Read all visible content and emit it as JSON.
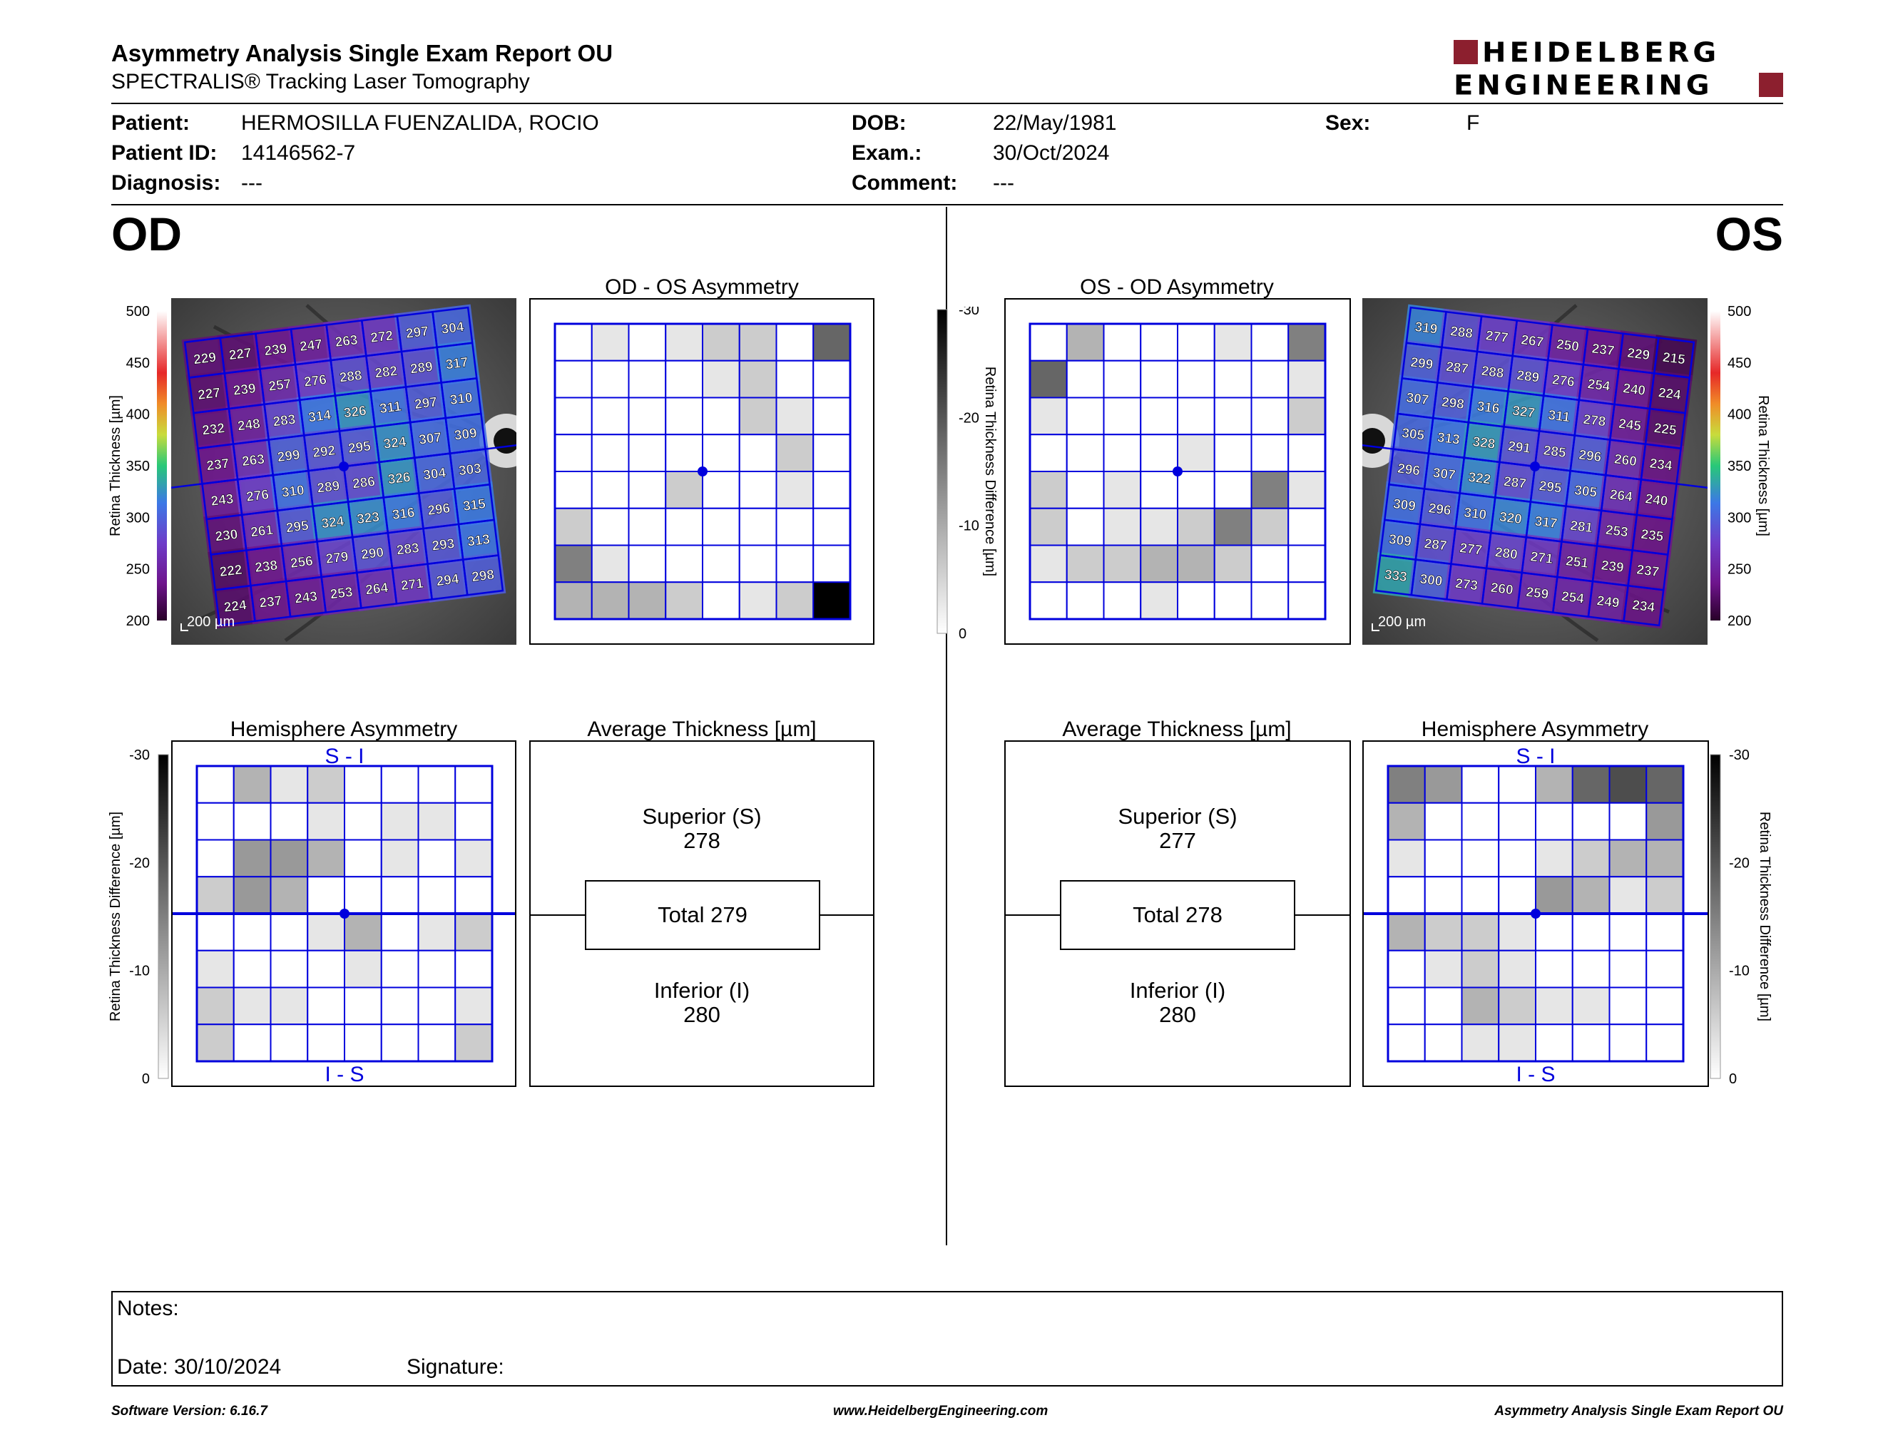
{
  "header": {
    "title": "Asymmetry Analysis Single Exam Report OU",
    "subtitle": "SPECTRALIS® Tracking Laser Tomography",
    "logo_line1": "HEIDELBERG",
    "logo_line2": "ENGINEERING"
  },
  "patient": {
    "patient_label": "Patient:",
    "patient_value": "HERMOSILLA FUENZALIDA, ROCIO",
    "id_label": "Patient ID:",
    "id_value": "14146562-7",
    "diagnosis_label": "Diagnosis:",
    "diagnosis_value": "---",
    "dob_label": "DOB:",
    "dob_value": "22/May/1981",
    "exam_label": "Exam.:",
    "exam_value": "30/Oct/2024",
    "comment_label": "Comment:",
    "comment_value": "---",
    "sex_label": "Sex:",
    "sex_value": "F"
  },
  "od": {
    "eye_label": "OD",
    "asymmetry_title": "OD - OS Asymmetry",
    "hemisphere_title": "Hemisphere Asymmetry",
    "average_title": "Average Thickness [µm]",
    "scale_bar": "200 µm",
    "superior_label": "Superior (S)",
    "superior_value": "278",
    "total_label": "Total 279",
    "inferior_label": "Inferior (I)",
    "inferior_value": "280",
    "si_label": "S - I",
    "is_label": "I - S",
    "thickness": [
      [
        229,
        227,
        239,
        247,
        263,
        272,
        297,
        304
      ],
      [
        227,
        239,
        257,
        276,
        288,
        282,
        289,
        317
      ],
      [
        232,
        248,
        283,
        314,
        326,
        311,
        297,
        310
      ],
      [
        237,
        263,
        299,
        292,
        295,
        324,
        307,
        309
      ],
      [
        243,
        276,
        310,
        289,
        286,
        326,
        304,
        303
      ],
      [
        230,
        261,
        295,
        324,
        323,
        316,
        296,
        315
      ],
      [
        222,
        238,
        256,
        279,
        290,
        283,
        293,
        313
      ],
      [
        224,
        237,
        243,
        253,
        264,
        271,
        294,
        298
      ]
    ],
    "asym_grid": [
      [
        0,
        1,
        0,
        1,
        2,
        2,
        0,
        6
      ],
      [
        0,
        0,
        0,
        0,
        1,
        2,
        0,
        0
      ],
      [
        0,
        0,
        0,
        0,
        0,
        2,
        1,
        0
      ],
      [
        0,
        0,
        0,
        0,
        0,
        0,
        2,
        0
      ],
      [
        0,
        0,
        0,
        2,
        0,
        0,
        1,
        0
      ],
      [
        2,
        0,
        0,
        0,
        0,
        0,
        0,
        0
      ],
      [
        5,
        1,
        0,
        0,
        0,
        0,
        0,
        0
      ],
      [
        3,
        3,
        3,
        2,
        0,
        1,
        2,
        10
      ]
    ],
    "hemi_grid": [
      [
        0,
        3,
        1,
        2,
        0,
        0,
        0,
        0
      ],
      [
        0,
        0,
        0,
        1,
        0,
        1,
        1,
        0
      ],
      [
        0,
        4,
        4,
        3,
        0,
        1,
        0,
        1
      ],
      [
        2,
        4,
        3,
        0,
        0,
        0,
        0,
        0
      ],
      [
        0,
        0,
        0,
        1,
        3,
        0,
        1,
        2
      ],
      [
        1,
        0,
        0,
        0,
        1,
        0,
        0,
        0
      ],
      [
        2,
        1,
        1,
        0,
        0,
        0,
        0,
        1
      ],
      [
        2,
        0,
        0,
        0,
        0,
        0,
        0,
        2
      ]
    ]
  },
  "os": {
    "eye_label": "OS",
    "asymmetry_title": "OS - OD Asymmetry",
    "hemisphere_title": "Hemisphere Asymmetry",
    "average_title": "Average Thickness [µm]",
    "scale_bar": "200 µm",
    "superior_label": "Superior (S)",
    "superior_value": "277",
    "total_label": "Total 278",
    "inferior_label": "Inferior (I)",
    "inferior_value": "280",
    "si_label": "S - I",
    "is_label": "I - S",
    "thickness": [
      [
        319,
        288,
        277,
        267,
        250,
        237,
        229,
        215
      ],
      [
        299,
        287,
        288,
        289,
        276,
        254,
        240,
        224
      ],
      [
        307,
        298,
        316,
        327,
        311,
        278,
        245,
        225
      ],
      [
        305,
        313,
        328,
        291,
        285,
        296,
        260,
        234
      ],
      [
        296,
        307,
        322,
        287,
        295,
        305,
        264,
        240
      ],
      [
        309,
        296,
        310,
        320,
        317,
        281,
        253,
        235
      ],
      [
        309,
        287,
        277,
        280,
        271,
        251,
        239,
        237
      ],
      [
        333,
        300,
        273,
        260,
        259,
        254,
        249,
        234
      ]
    ],
    "asym_grid": [
      [
        0,
        3,
        0,
        0,
        0,
        1,
        0,
        5
      ],
      [
        6,
        0,
        0,
        0,
        0,
        0,
        0,
        1
      ],
      [
        1,
        0,
        0,
        0,
        0,
        0,
        0,
        2
      ],
      [
        0,
        0,
        0,
        0,
        1,
        0,
        0,
        0
      ],
      [
        2,
        0,
        1,
        0,
        0,
        0,
        5,
        1
      ],
      [
        2,
        0,
        1,
        1,
        2,
        5,
        2,
        0
      ],
      [
        1,
        2,
        2,
        3,
        3,
        2,
        0,
        0
      ],
      [
        0,
        0,
        0,
        1,
        0,
        0,
        0,
        0
      ]
    ],
    "hemi_grid": [
      [
        5,
        4,
        0,
        0,
        3,
        6,
        7,
        6
      ],
      [
        3,
        0,
        0,
        0,
        0,
        0,
        0,
        4
      ],
      [
        1,
        0,
        0,
        0,
        1,
        2,
        3,
        3
      ],
      [
        0,
        0,
        0,
        0,
        4,
        3,
        1,
        2
      ],
      [
        3,
        2,
        2,
        1,
        0,
        0,
        0,
        0
      ],
      [
        0,
        1,
        2,
        1,
        0,
        0,
        0,
        0
      ],
      [
        0,
        0,
        3,
        2,
        1,
        1,
        0,
        0
      ],
      [
        0,
        0,
        1,
        1,
        0,
        0,
        0,
        0
      ]
    ]
  },
  "scales": {
    "thickness_axis_title": "Retina Thickness [µm]",
    "thickness_ticks": [
      "500",
      "450",
      "400",
      "350",
      "300",
      "250",
      "200"
    ],
    "diff_axis_title": "Retina Thickness Difference [µm]",
    "diff_ticks": [
      "-30",
      "-20",
      "-10",
      "0"
    ]
  },
  "notes": {
    "notes_label": "Notes:",
    "date_label": "Date: 30/10/2024",
    "signature_label": "Signature:"
  },
  "footer": {
    "software": "Software Version: 6.16.7",
    "website": "www.HeidelbergEngineering.com",
    "report": "Asymmetry Analysis Single Exam Report OU"
  },
  "colors": {
    "grid_blue": "#0000dd",
    "brand_red": "#8c1f2e"
  }
}
